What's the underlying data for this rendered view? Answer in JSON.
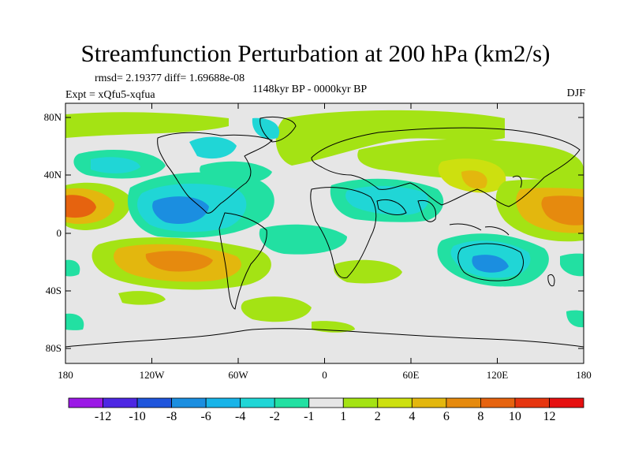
{
  "title": "Streamfunction Perturbation at 200 hPa (km2/s)",
  "stats_line": "rmsd= 2.19377 diff= 1.69688e-08",
  "experiment": "Expt = xQfu5-xqfua",
  "period": "1148kyr BP - 0000kyr BP",
  "season": "DJF",
  "axes": {
    "lat_ticks": [
      "80N",
      "40N",
      "0",
      "40S",
      "80S"
    ],
    "lon_ticks": [
      "180",
      "120W",
      "60W",
      "0",
      "60E",
      "120E",
      "180"
    ]
  },
  "colorbar": {
    "labels": [
      "-12",
      "-10",
      "-8",
      "-6",
      "-4",
      "-2",
      "-1",
      "1",
      "2",
      "4",
      "6",
      "8",
      "10",
      "12"
    ],
    "colors": [
      "#9b19e6",
      "#4d27e3",
      "#1f55dc",
      "#1b8ee0",
      "#18b4e8",
      "#20d6d6",
      "#22e0a2",
      "#e6e6e6",
      "#a4e314",
      "#cde00f",
      "#e3b70e",
      "#e68a0e",
      "#e6630f",
      "#e6350f",
      "#e61010"
    ]
  },
  "chart_data": {
    "type": "heatmap",
    "title": "Streamfunction Perturbation at 200 hPa (km2/s)",
    "units": "km2/s",
    "levels": [
      -12,
      -10,
      -8,
      -6,
      -4,
      -2,
      -1,
      1,
      2,
      4,
      6,
      8,
      10,
      12
    ],
    "lon_range": [
      -180,
      180
    ],
    "lat_range": [
      -90,
      90
    ],
    "features": [
      {
        "lon": -165,
        "lat": 15,
        "value": 9,
        "label": "positive center, central Pacific N"
      },
      {
        "lon": 165,
        "lat": 15,
        "value": 8,
        "label": "positive center, western Pacific N"
      },
      {
        "lon": -110,
        "lat": 12,
        "value": -7,
        "label": "negative center, eastern Pacific N"
      },
      {
        "lon": -105,
        "lat": -22,
        "value": 8,
        "label": "positive center, eastern Pacific S"
      },
      {
        "lon": 105,
        "lat": 28,
        "value": 5,
        "label": "positive center, Tibet/China"
      },
      {
        "lon": 45,
        "lat": 25,
        "value": -3,
        "label": "negative center, Arabia"
      },
      {
        "lon": 115,
        "lat": -20,
        "value": -6,
        "label": "negative center, Australia"
      },
      {
        "lon": 30,
        "lat": -30,
        "value": 3,
        "label": "positive center, southern Africa"
      },
      {
        "lon": -160,
        "lat": 42,
        "value": -3,
        "label": "negative center, North Pacific"
      },
      {
        "lon": -60,
        "lat": 70,
        "value": -3,
        "label": "negative center, Arctic Canada"
      },
      {
        "lon": 60,
        "lat": 65,
        "value": 3,
        "label": "positive band, northern Eurasia"
      },
      {
        "lon": -30,
        "lat": -65,
        "value": 2,
        "label": "positive band, Southern Ocean"
      }
    ]
  }
}
